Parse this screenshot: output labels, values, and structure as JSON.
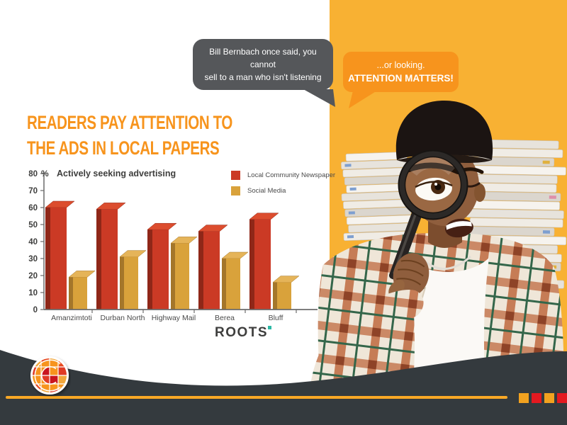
{
  "slide": {
    "quote_bubble": {
      "line1": "Bill Bernbach once said, you cannot",
      "line2": "sell to a man who isn't listening"
    },
    "response_bubble": {
      "line1": "...or looking.",
      "line2": "ATTENTION MATTERS!"
    },
    "title": {
      "line1": "READERS PAY ATTENTION TO",
      "line2": "THE ADS IN LOCAL PAPERS"
    },
    "brand": {
      "name": "ROOTS"
    },
    "colors": {
      "accent_orange": "#F7941D",
      "panel_yellow": "#F8B133",
      "bubble_gray": "#55575A",
      "footer_dark": "#343A3E",
      "footer_line_orange": "#F9A826"
    }
  },
  "chart_data": {
    "type": "bar",
    "style": "3d",
    "title": "Actively seeking advertising",
    "unit_label": "%",
    "categories": [
      "Amanzimtoti",
      "Durban North",
      "Highway Mail",
      "Berea",
      "Bluff"
    ],
    "series": [
      {
        "name": "Local Community Newspaper",
        "color": "#CB3A25",
        "color_dark": "#8F2718",
        "color_light": "#DC4D2E",
        "values": [
          60,
          59,
          47,
          46,
          53
        ]
      },
      {
        "name": "Social Media",
        "color": "#D9A23B",
        "color_dark": "#A4762A",
        "color_light": "#E5B459",
        "values": [
          19,
          31,
          39,
          30,
          16
        ]
      }
    ],
    "ylim": [
      0,
      80
    ],
    "ytick_step": 10,
    "xlabel": "",
    "ylabel": "%",
    "legend_position": "top-right",
    "grid": false
  },
  "footer": {
    "squares": [
      {
        "color": "#F2A21F"
      },
      {
        "color": "#E41920"
      },
      {
        "color": "#F2A21F"
      },
      {
        "color": "#E41920"
      }
    ]
  }
}
